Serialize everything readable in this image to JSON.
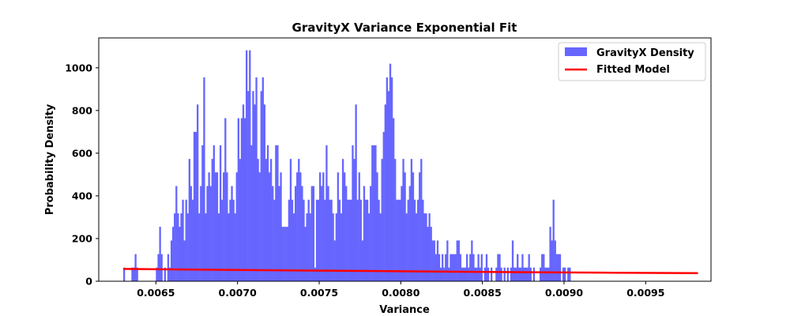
{
  "chart_data": {
    "type": "bar",
    "title": "GravityX Variance Exponential Fit",
    "xlabel": "Variance",
    "ylabel": "Probability Density",
    "xlim": [
      0.00615,
      0.0099
    ],
    "ylim": [
      0,
      1140
    ],
    "xticks": [
      0.0065,
      0.007,
      0.0075,
      0.008,
      0.0085,
      0.009,
      0.0095
    ],
    "xtick_labels": [
      "0.0065",
      "0.0070",
      "0.0075",
      "0.0080",
      "0.0085",
      "0.0090",
      "0.0095"
    ],
    "yticks": [
      0,
      200,
      400,
      600,
      800,
      1000
    ],
    "ytick_labels": [
      "0",
      "200",
      "400",
      "600",
      "800",
      "1000"
    ],
    "grid": false,
    "legend_position": "top-right",
    "bin_start": 0.0063,
    "bin_width": 1e-05,
    "series": [
      {
        "name": "GravityX Density",
        "color": "#6666ff",
        "kind": "histogram",
        "values": [
          64,
          0,
          0,
          0,
          0,
          64,
          64,
          127,
          64,
          0,
          0,
          0,
          0,
          0,
          0,
          0,
          0,
          0,
          0,
          0,
          64,
          127,
          255,
          127,
          0,
          64,
          0,
          127,
          64,
          191,
          255,
          318,
          446,
          318,
          255,
          318,
          382,
          191,
          382,
          318,
          573,
          446,
          382,
          700,
          700,
          828,
          318,
          446,
          637,
          955,
          318,
          446,
          510,
          446,
          573,
          637,
          510,
          510,
          318,
          637,
          382,
          510,
          764,
          510,
          318,
          382,
          446,
          382,
          318,
          510,
          764,
          573,
          764,
          828,
          764,
          1082,
          891,
          1082,
          637,
          891,
          828,
          955,
          573,
          510,
          891,
          955,
          828,
          573,
          637,
          510,
          573,
          446,
          382,
          637,
          637,
          446,
          510,
          255,
          255,
          255,
          255,
          382,
          573,
          382,
          318,
          446,
          510,
          573,
          510,
          446,
          382,
          255,
          318,
          382,
          318,
          446,
          446,
          64,
          382,
          382,
          510,
          446,
          510,
          382,
          637,
          446,
          382,
          382,
          318,
          191,
          318,
          510,
          382,
          318,
          573,
          510,
          446,
          382,
          382,
          382,
          637,
          573,
          828,
          382,
          510,
          382,
          191,
          446,
          382,
          382,
          318,
          446,
          637,
          637,
          637,
          510,
          382,
          318,
          573,
          700,
          828,
          955,
          891,
          1019,
          955,
          764,
          573,
          382,
          382,
          382,
          446,
          573,
          510,
          318,
          382,
          446,
          573,
          510,
          382,
          318,
          382,
          510,
          573,
          382,
          318,
          318,
          255,
          318,
          255,
          191,
          191,
          127,
          191,
          127,
          64,
          127,
          64,
          127,
          191,
          64,
          127,
          127,
          127,
          127,
          191,
          191,
          127,
          64,
          64,
          64,
          127,
          64,
          127,
          191,
          127,
          64,
          64,
          127,
          64,
          127,
          0,
          64,
          127,
          64,
          0,
          64,
          0,
          0,
          64,
          127,
          127,
          64,
          0,
          64,
          0,
          64,
          0,
          64,
          191,
          64,
          64,
          127,
          64,
          64,
          127,
          64,
          64,
          64,
          127,
          64,
          0,
          64,
          0,
          0,
          0,
          64,
          127,
          127,
          64,
          64,
          64,
          255,
          191,
          382,
          191,
          127,
          127,
          127,
          0,
          64,
          64,
          0,
          64,
          64,
          0
        ]
      },
      {
        "name": "Fitted Model",
        "color": "#ff0000",
        "kind": "line",
        "x": [
          0.0063,
          0.0068,
          0.0073,
          0.0078,
          0.0083,
          0.0088,
          0.0093,
          0.00982
        ],
        "y": [
          58,
          54,
          51,
          48,
          45,
          42,
          40,
          38
        ]
      }
    ]
  }
}
